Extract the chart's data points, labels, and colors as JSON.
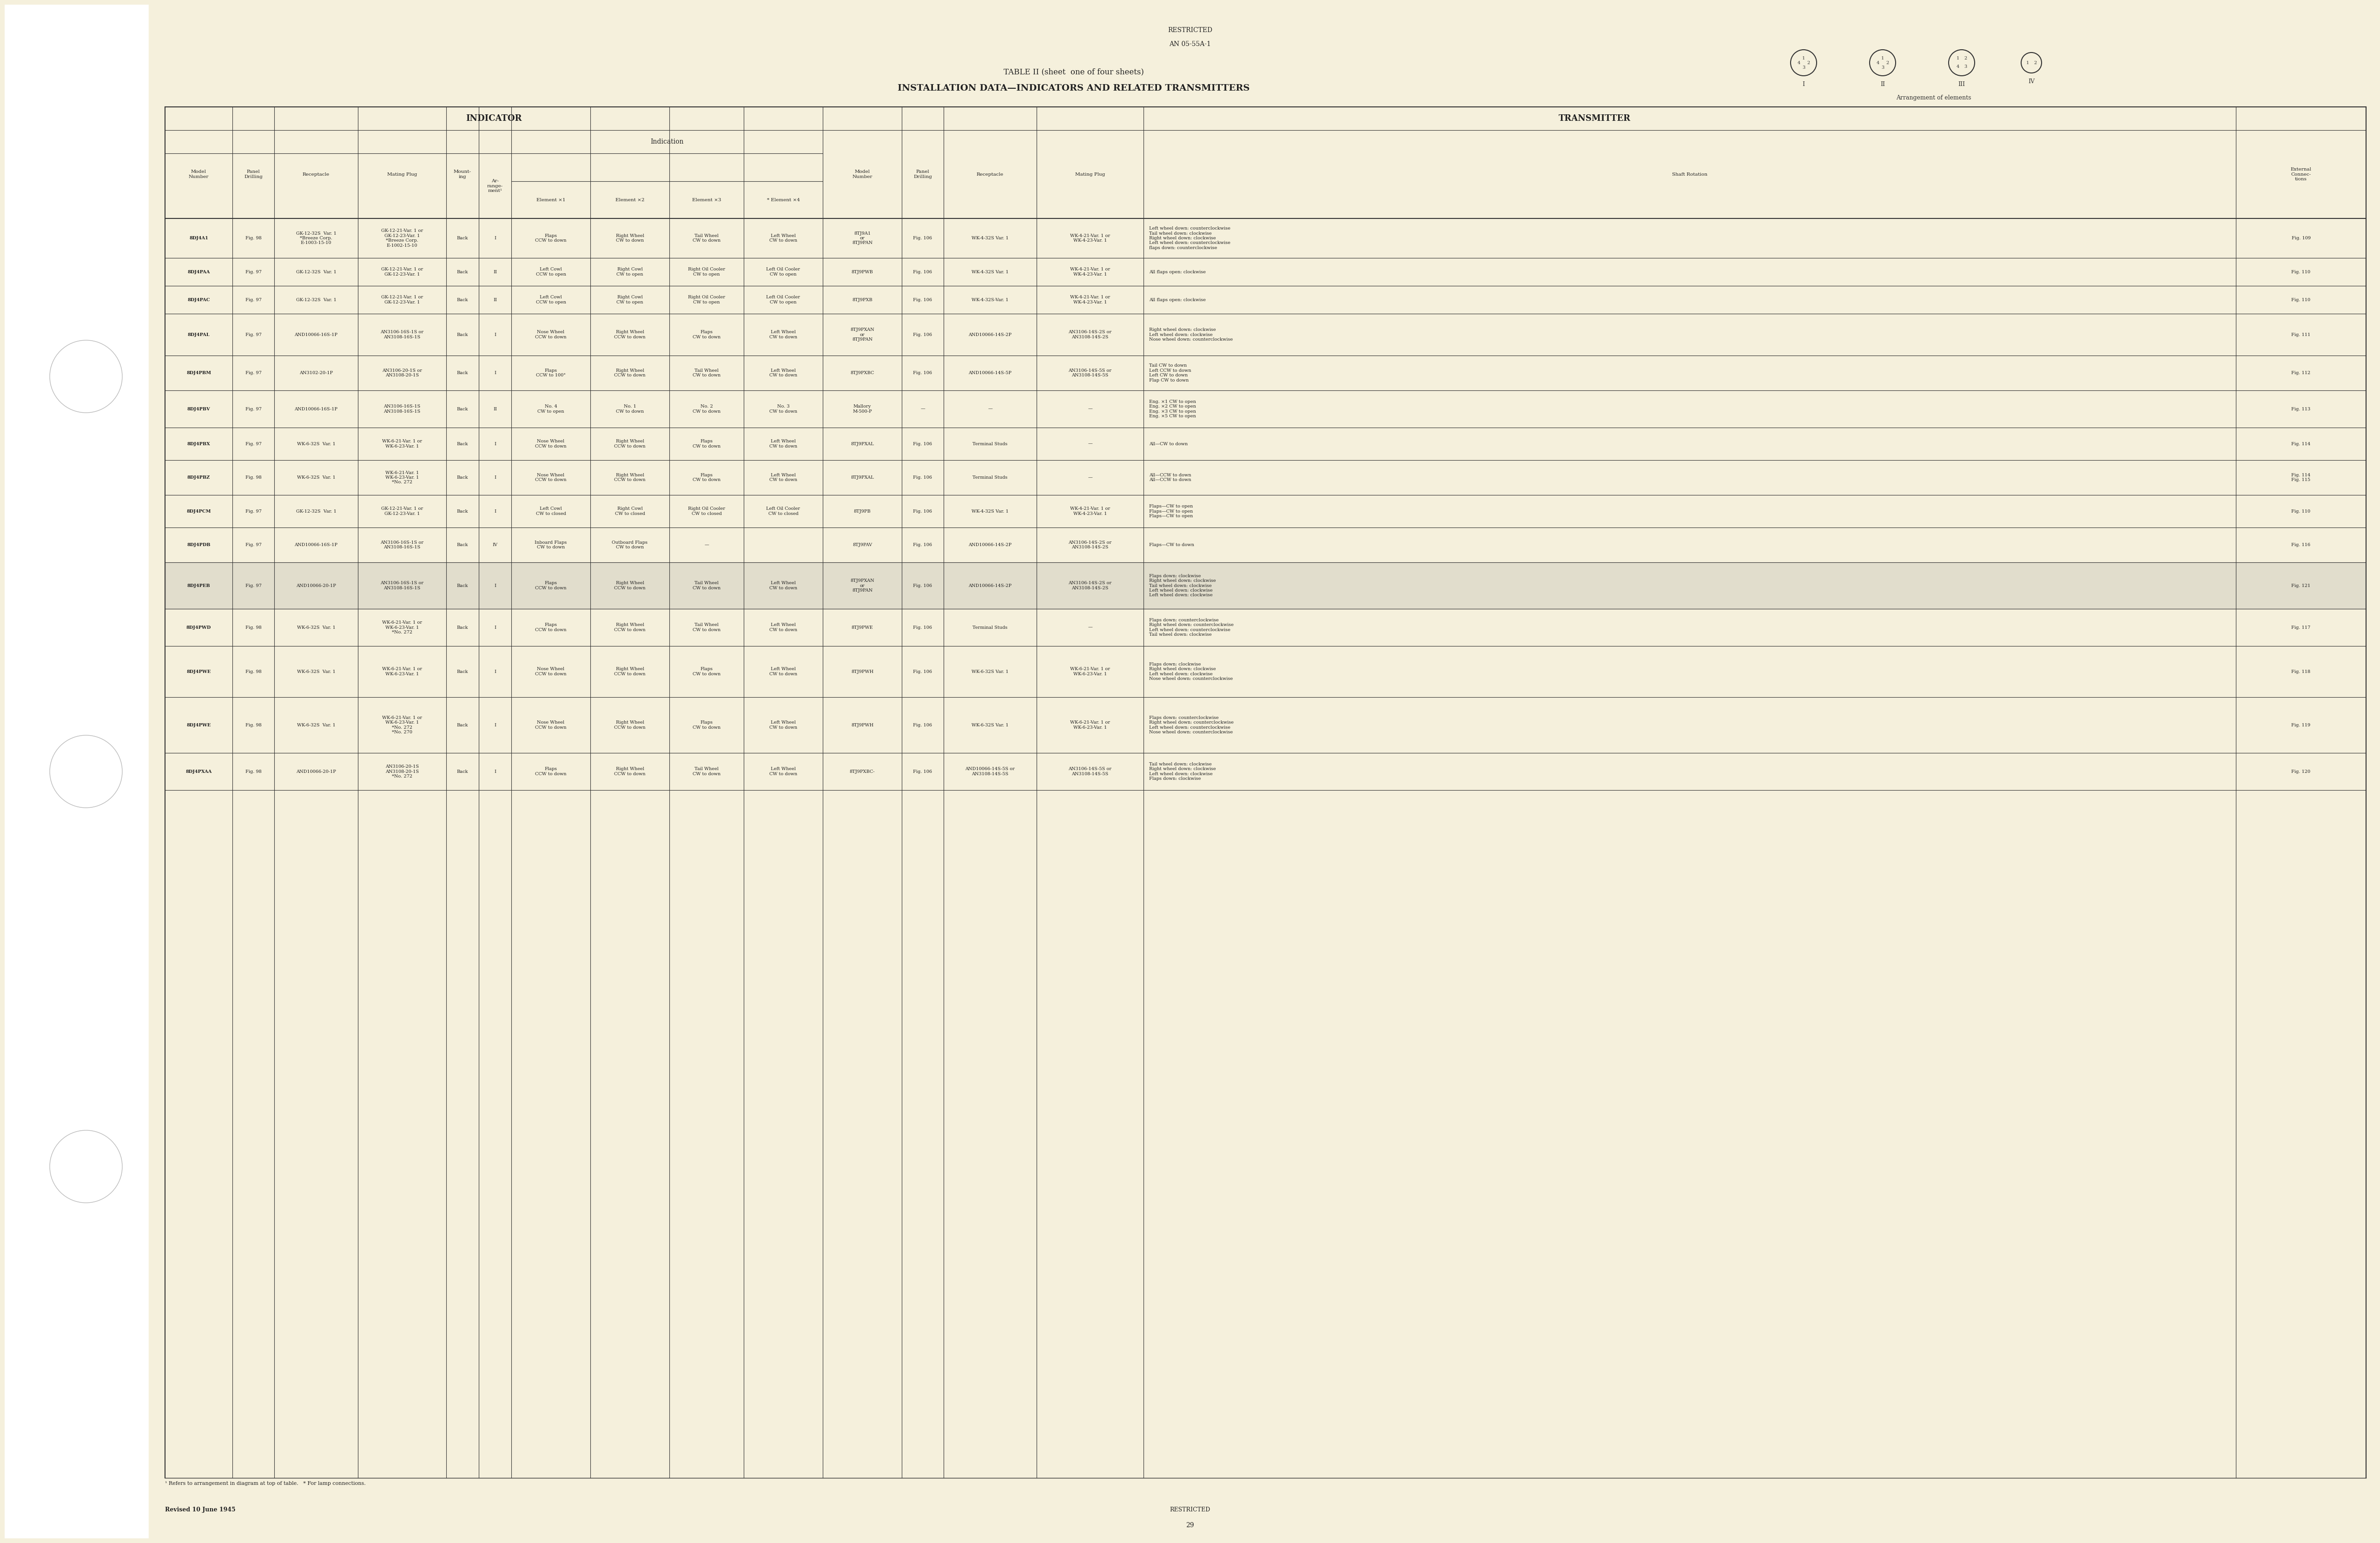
{
  "page_bg": "#f5f0dc",
  "left_margin_bg": "#ffffff",
  "title_restricted": "RESTRICTED",
  "title_doc": "AN 05-55A-1",
  "table_title_line1": "TABLE II (sheet  one of four sheets)",
  "table_title_line2": "INSTALLATION DATA—INDICATORS AND RELATED TRANSMITTERS",
  "header_indicator": "INDICATOR",
  "header_transmitter": "TRANSMITTER",
  "footnote1": "¹ Refers to arrangement in diagram at top of table.   * For lamp connections.",
  "footnote2": "Revised 10 June 1945",
  "footnote3": "RESTRICTED",
  "page_num": "29"
}
